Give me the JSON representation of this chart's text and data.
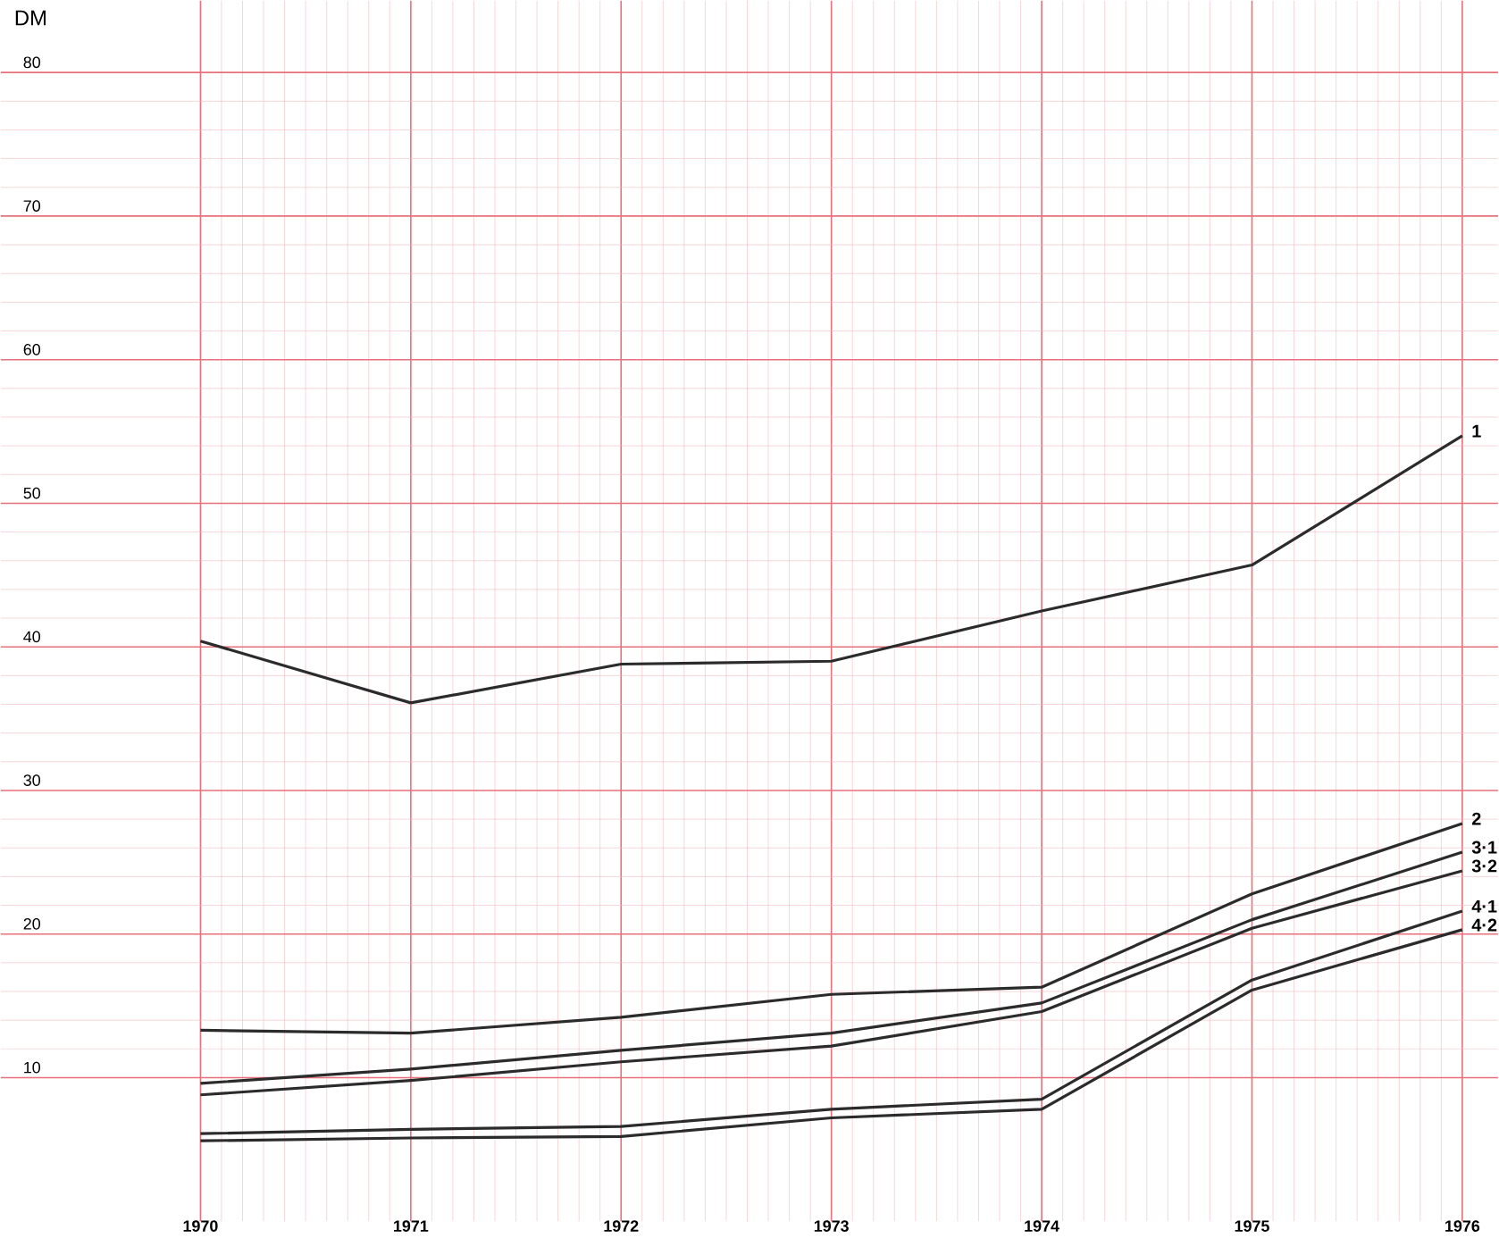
{
  "chart_data": {
    "type": "line",
    "ylabel": "DM",
    "categories": [
      "1970",
      "1971",
      "1972",
      "1973",
      "1974",
      "1975",
      "1976"
    ],
    "ylim": [
      0,
      85
    ],
    "yticks": [
      10,
      20,
      30,
      40,
      50,
      60,
      70,
      80
    ],
    "grid": true,
    "legend": false,
    "line_style": "solid",
    "marker": "none",
    "series": [
      {
        "name": "1",
        "color": "#2b2b2b",
        "values": [
          40.4,
          36.1,
          38.8,
          39.0,
          42.5,
          45.7,
          54.7
        ]
      },
      {
        "name": "2",
        "color": "#2b2b2b",
        "values": [
          13.3,
          13.1,
          14.2,
          15.8,
          16.3,
          22.8,
          27.7
        ]
      },
      {
        "name": "3·1",
        "color": "#2b2b2b",
        "values": [
          9.6,
          10.6,
          11.9,
          13.1,
          15.2,
          21.0,
          25.7
        ]
      },
      {
        "name": "3·2",
        "color": "#2b2b2b",
        "values": [
          8.8,
          9.8,
          11.1,
          12.2,
          14.6,
          20.4,
          24.4
        ]
      },
      {
        "name": "4·1",
        "color": "#2b2b2b",
        "values": [
          6.1,
          6.4,
          6.6,
          7.8,
          8.5,
          16.8,
          21.6
        ]
      },
      {
        "name": "4·2",
        "color": "#2b2b2b",
        "values": [
          5.6,
          5.8,
          5.9,
          7.2,
          7.8,
          16.1,
          20.3
        ]
      }
    ]
  }
}
